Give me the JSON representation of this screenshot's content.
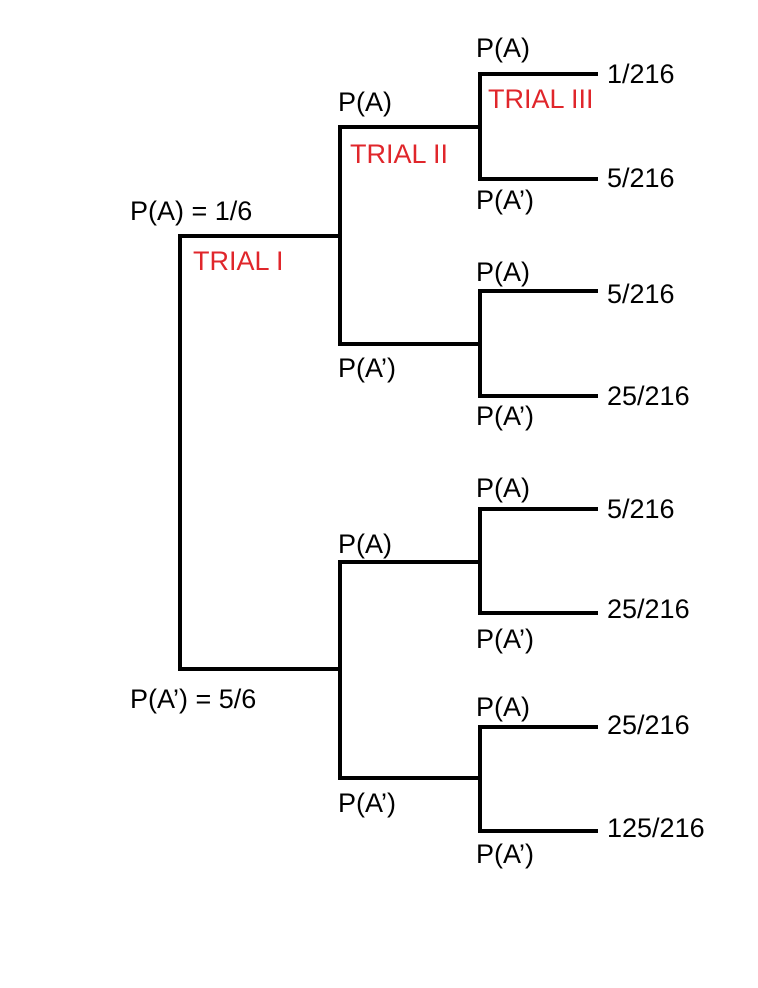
{
  "colors": {
    "line": "#000000",
    "text": "#000000",
    "trial_label": "#e0262b",
    "background": "#ffffff"
  },
  "trials": {
    "trial_1": "TRIAL I",
    "trial_2": "TRIAL II",
    "trial_3": "TRIAL III"
  },
  "level1": {
    "upper_label": "P(A) = 1/6",
    "lower_label": "P(A’) = 5/6"
  },
  "level2": {
    "upper_upper": "P(A)",
    "upper_lower": "P(A’)",
    "lower_upper": "P(A)",
    "lower_lower": "P(A’)"
  },
  "level3": {
    "b1_upper": "P(A)",
    "b1_lower": "P(A’)",
    "b2_upper": "P(A)",
    "b2_lower": "P(A’)",
    "b3_upper": "P(A)",
    "b3_lower": "P(A’)",
    "b4_upper": "P(A)",
    "b4_lower": "P(A’)"
  },
  "outcomes": [
    "1/216",
    "5/216",
    "5/216",
    "25/216",
    "5/216",
    "25/216",
    "25/216",
    "125/216"
  ]
}
